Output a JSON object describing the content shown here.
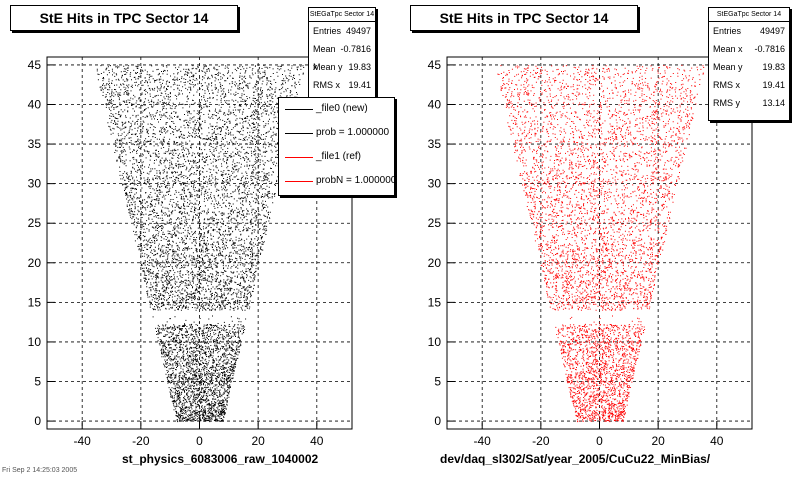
{
  "chart_data": [
    {
      "type": "scatter",
      "title": "StE Hits in TPC Sector 14",
      "xlabel": "st_physics_6083006_raw_1040002",
      "ylabel": "",
      "xlim": [
        -52,
        52
      ],
      "ylim": [
        -1,
        46
      ],
      "x_ticks": [
        "-40",
        "-20",
        "0",
        "20",
        "40"
      ],
      "y_ticks": [
        "0",
        "5",
        "10",
        "15",
        "20",
        "25",
        "30",
        "35",
        "40",
        "45"
      ],
      "grid": true,
      "marker_color": "#000000",
      "stats": {
        "name": "StEGaTpc Sector 14",
        "entries": "49497",
        "mean_x": "-0.7816",
        "mean_y": "19.83",
        "rms_x": "19.41"
      },
      "legend": {
        "placement": "top-right",
        "entries": [
          {
            "label": "_file0 (new)",
            "color": "#000000"
          },
          {
            "label": "prob = 1.000000",
            "color": "#000000"
          },
          {
            "label": "_file1 (ref)",
            "color": "#ff0000"
          },
          {
            "label": "probN = 1.000000",
            "color": "#ff0000"
          }
        ]
      }
    },
    {
      "type": "scatter",
      "title": "StE Hits in TPC Sector 14",
      "xlabel": "dev/daq_sl302/Sat/year_2005/CuCu22_MinBias/",
      "ylabel": "",
      "xlim": [
        -52,
        52
      ],
      "ylim": [
        -1,
        46
      ],
      "x_ticks": [
        "-40",
        "-20",
        "0",
        "20",
        "40"
      ],
      "y_ticks": [
        "0",
        "5",
        "10",
        "15",
        "20",
        "25",
        "30",
        "35",
        "40",
        "45"
      ],
      "grid": true,
      "marker_color": "#ff0000",
      "stats": {
        "name": "StEGaTpc Sector 14",
        "entries": "49497",
        "mean_x": "-0.7816",
        "mean_y": "19.83",
        "rms_x": "19.41",
        "rms_y": "13.14"
      }
    }
  ],
  "labels": {
    "entries": "Entries",
    "mean_x": "Mean x",
    "mean_y": "Mean y",
    "rms_x": "RMS x",
    "rms_y": "RMS y"
  },
  "footer_text": "Fri Sep 2 14:25:03 2005"
}
